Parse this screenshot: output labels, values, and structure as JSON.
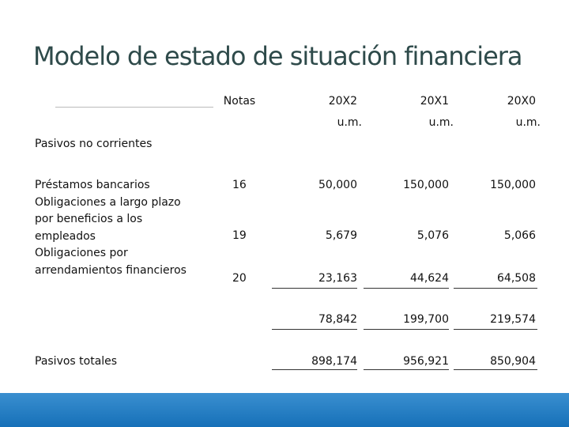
{
  "title": "Modelo de estado de situación financiera",
  "table": {
    "header": [
      "Notas",
      "20X2",
      "20X1",
      "20X0"
    ],
    "units": [
      "u.m.",
      "u.m.",
      "u.m."
    ],
    "section": "Pasivos no corrientes",
    "label_lines": [
      "Préstamos bancarios",
      "Obligaciones a largo plazo",
      "por beneficios a los",
      "empleados",
      "Obligaciones por",
      "arrendamientos financieros"
    ],
    "rows": [
      [
        "16",
        "50,000",
        "150,000",
        "150,000"
      ],
      [
        "19",
        "5,679",
        "5,076",
        "5,066"
      ],
      [
        "20",
        "23,163",
        "44,624",
        "64,508"
      ]
    ],
    "subtotal": [
      "78,842",
      "199,700",
      "219,574"
    ],
    "total": {
      "label": "Pasivos totales",
      "values": [
        "898,174",
        "956,921",
        "850,904"
      ]
    }
  }
}
